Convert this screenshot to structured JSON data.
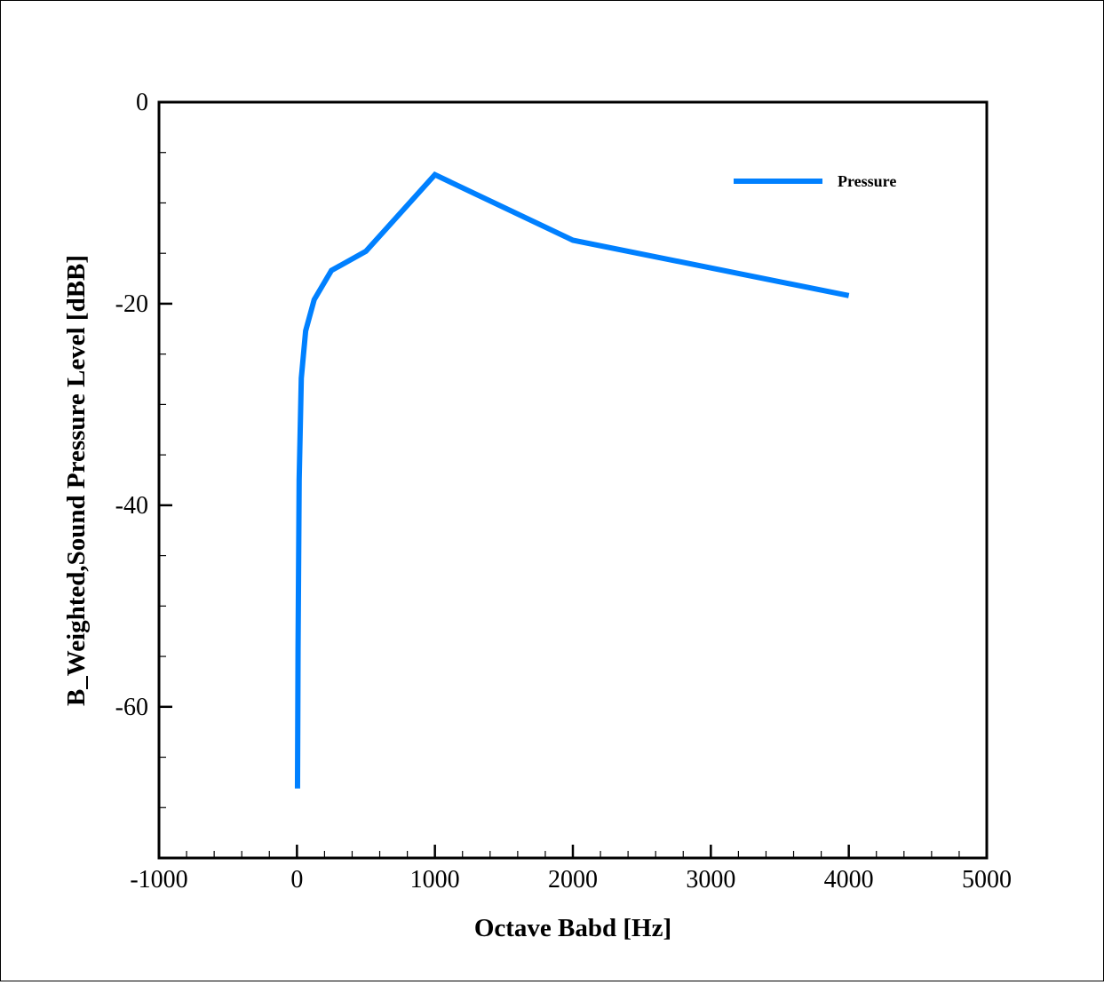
{
  "chart_data": {
    "type": "line",
    "title": "",
    "xlabel": "Octave Babd [Hz]",
    "ylabel": "B_Weighted,Sound Pressure Level [dBB]",
    "xlim": [
      -1000,
      5000
    ],
    "ylim": [
      -75,
      0
    ],
    "xticks": [
      -1000,
      0,
      1000,
      2000,
      3000,
      4000,
      5000
    ],
    "yticks": [
      0,
      -20,
      -40,
      -60
    ],
    "grid": false,
    "legend_position": "top-right",
    "series": [
      {
        "name": "Pressure",
        "color": "#0080ff",
        "x": [
          4,
          8,
          16,
          31.5,
          63,
          125,
          250,
          500,
          1000,
          2000,
          4000
        ],
        "y": [
          -68.1,
          -54.3,
          -37.5,
          -27.4,
          -22.7,
          -19.6,
          -16.7,
          -14.8,
          -7.2,
          -13.7,
          -19.2
        ]
      }
    ]
  }
}
